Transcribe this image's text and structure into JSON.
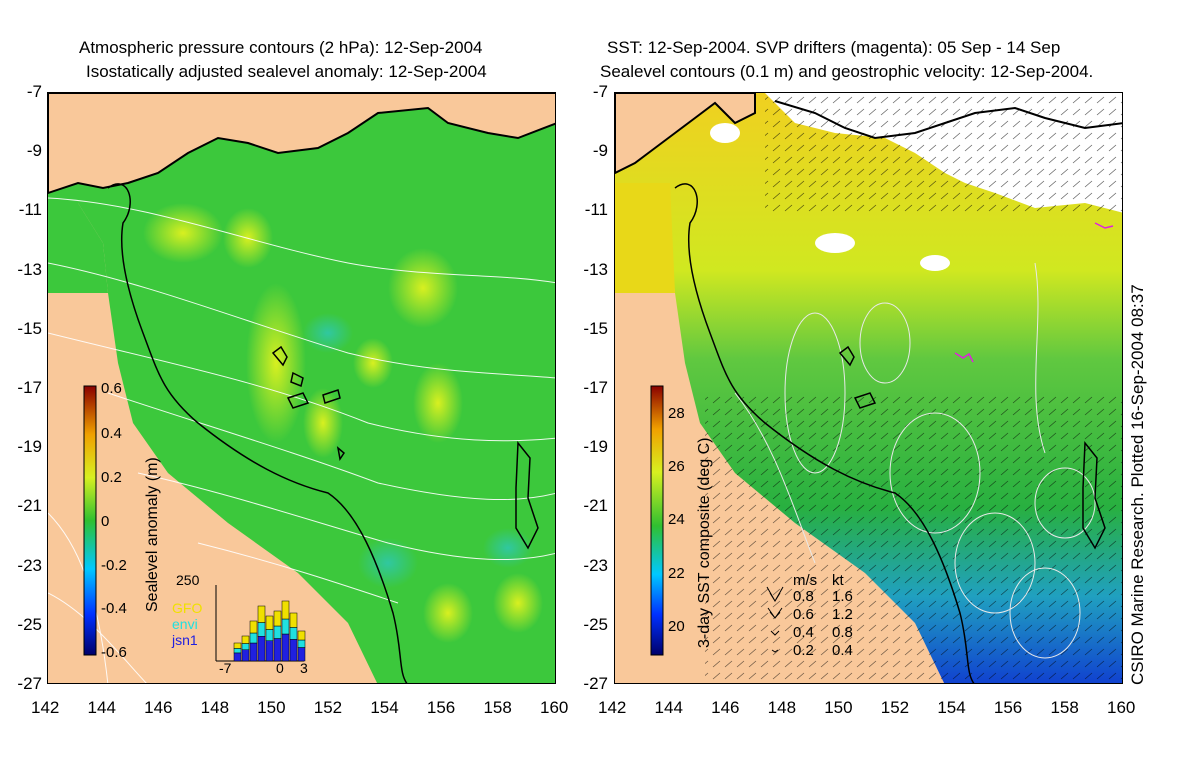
{
  "left_panel": {
    "title_line1": "Atmospheric pressure contours (2 hPa): 12-Sep-2004",
    "title_line2": "Isostatically adjusted sealevel anomaly: 12-Sep-2004",
    "colorbar": {
      "label": "Sealevel anomaly (m)",
      "ticks": [
        "0.6",
        "0.4",
        "0.2",
        "0",
        "-0.2",
        "-0.4",
        "-0.6"
      ],
      "range": [
        -0.6,
        0.6
      ]
    },
    "histogram": {
      "ymax_label": "250",
      "x_ticks": [
        "-7",
        "0",
        "3"
      ],
      "legend": [
        {
          "name": "GFO",
          "color": "#f0e000"
        },
        {
          "name": "envi",
          "color": "#20e0e0"
        },
        {
          "name": "jsn1",
          "color": "#2020e0"
        }
      ]
    }
  },
  "right_panel": {
    "title_line1": "SST: 12-Sep-2004. SVP drifters (magenta): 05 Sep - 14 Sep",
    "title_line2": "Sealevel contours (0.1 m) and geostrophic velocity: 12-Sep-2004.",
    "colorbar": {
      "label": "3-day SST composite (deg C)",
      "ticks": [
        "28",
        "26",
        "24",
        "22",
        "20"
      ],
      "range": [
        19,
        29.5
      ]
    },
    "velocity_legend": {
      "header_ms": "m/s",
      "header_kt": "kt",
      "rows": [
        {
          "ms": "0.8",
          "kt": "1.6"
        },
        {
          "ms": "0.6",
          "kt": "1.2"
        },
        {
          "ms": "0.4",
          "kt": "0.8"
        },
        {
          "ms": "0.2",
          "kt": "0.4"
        }
      ]
    }
  },
  "axes": {
    "lat_ticks": [
      "-7",
      "-9",
      "-11",
      "-13",
      "-15",
      "-17",
      "-19",
      "-21",
      "-23",
      "-25",
      "-27"
    ],
    "lon_ticks": [
      "142",
      "144",
      "146",
      "148",
      "150",
      "152",
      "154",
      "156",
      "158",
      "160"
    ],
    "lat_range": [
      -27,
      -7
    ],
    "lon_range": [
      142,
      160
    ]
  },
  "credit": "CSIRO Marine Research. Plotted 16-Sep-2004 08:37",
  "colors": {
    "land": "#f9c89a",
    "sea_left": "#3cc83c",
    "coast": "#000000"
  }
}
